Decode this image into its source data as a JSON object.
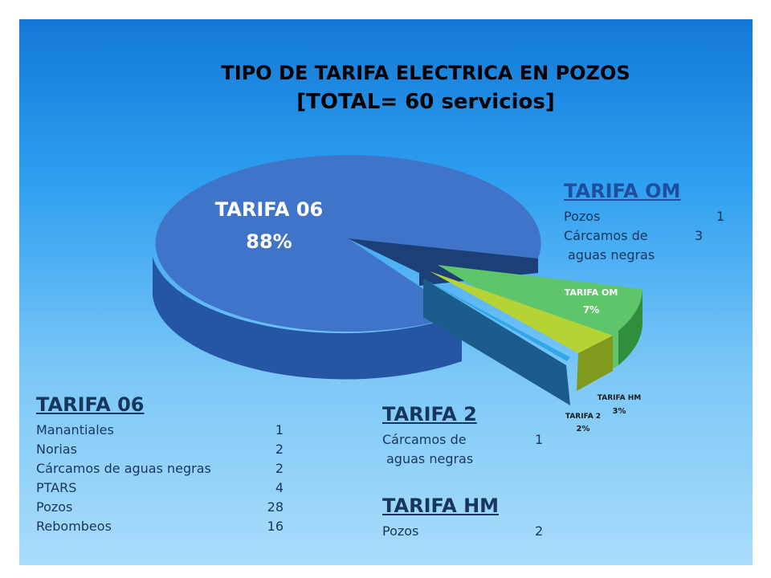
{
  "slide": {
    "title_line1": "TIPO DE TARIFA  ELECTRICA EN POZOS",
    "title_line2": "[TOTAL= 60 servicios]"
  },
  "chart_data": {
    "type": "pie",
    "title": "TIPO DE TARIFA  ELECTRICA EN POZOS",
    "subtitle": "[TOTAL= 60 servicios]",
    "slices": [
      {
        "label": "TARIFA 06",
        "value": 88,
        "value_label": "88%",
        "color": "#3f74c8"
      },
      {
        "label": "TARIFA OM",
        "value": 7,
        "value_label": "7%",
        "color": "#5ec56b"
      },
      {
        "label": "TARIFA HM",
        "value": 3,
        "value_label": "3%",
        "color": "#b5d334"
      },
      {
        "label": "TARIFA 2",
        "value": 2,
        "value_label": "2%",
        "color": "#2fa7e8"
      }
    ]
  },
  "details": {
    "tarifa06": {
      "heading": "TARIFA 06",
      "rows": [
        {
          "name": "Manantiales",
          "count": "1"
        },
        {
          "name": "Norias",
          "count": "2"
        },
        {
          "name": "Cárcamos de aguas negras",
          "count": "2"
        },
        {
          "name": "PTARS",
          "count": "4"
        },
        {
          "name": "Pozos",
          "count": "28"
        },
        {
          "name": "Rebombeos",
          "count": "16"
        }
      ]
    },
    "tarifaOM": {
      "heading": "TARIFA OM",
      "row1_name": "Pozos",
      "row1_count": "1",
      "row2_name": "Cárcamos de",
      "row2_count": "3",
      "row2_cont": "aguas negras"
    },
    "tarifa2": {
      "heading": "TARIFA 2",
      "row1_name": "Cárcamos de",
      "row1_count": "1",
      "row1_cont": "aguas negras"
    },
    "tarifaHM": {
      "heading": "TARIFA HM",
      "row1_name": "Pozos",
      "row1_count": "2"
    }
  }
}
